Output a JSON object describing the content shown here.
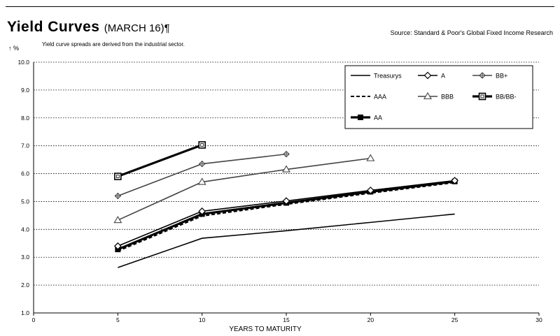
{
  "header": {
    "title": "Yield Curves",
    "title_date": "(MARCH 16)¶",
    "source": "Source: Standard & Poor's Global Fixed Income Research",
    "subtitle": "Yield curve spreads are derived from the industrial sector.",
    "y_unit": "%"
  },
  "chart_data": {
    "type": "line",
    "title": "Yield Curves",
    "xlabel": "YEARS TO MATURITY",
    "ylabel": "%",
    "xlim": [
      0,
      30
    ],
    "ylim": [
      1.0,
      10.0
    ],
    "x_ticks": [
      0,
      5,
      10,
      15,
      20,
      25,
      30
    ],
    "y_ticks": [
      "1.0",
      "2.0",
      "3.0",
      "4.0",
      "5.0",
      "6.0",
      "7.0",
      "8.0",
      "9.0",
      "10.0"
    ],
    "grid": "horizontal dotted",
    "legend_position": "top-right",
    "series": [
      {
        "name": "Treasurys",
        "style": "solid",
        "marker": "none",
        "color": "#000000",
        "x": [
          5,
          10,
          15,
          20,
          25
        ],
        "y": [
          2.63,
          3.68,
          3.95,
          4.25,
          4.55
        ]
      },
      {
        "name": "AAA",
        "style": "dashed",
        "marker": "none",
        "color": "#000000",
        "x": [
          5,
          10,
          15,
          20,
          25
        ],
        "y": [
          3.22,
          4.48,
          4.9,
          5.3,
          5.68
        ]
      },
      {
        "name": "AA",
        "style": "bold",
        "marker": "filled-square",
        "color": "#000000",
        "x": [
          5,
          10,
          15,
          20,
          25
        ],
        "y": [
          3.28,
          4.55,
          4.95,
          5.35,
          5.72
        ]
      },
      {
        "name": "A",
        "style": "solid",
        "marker": "diamond",
        "color": "#000000",
        "x": [
          5,
          10,
          15,
          20,
          25
        ],
        "y": [
          3.4,
          4.65,
          5.02,
          5.4,
          5.75
        ]
      },
      {
        "name": "BBB",
        "style": "solid",
        "marker": "triangle",
        "color": "#444444",
        "x": [
          5,
          10,
          15,
          20
        ],
        "y": [
          4.33,
          5.7,
          6.15,
          6.55
        ]
      },
      {
        "name": "BB+",
        "style": "solid",
        "marker": "plus-diamond",
        "color": "#444444",
        "x": [
          5,
          10,
          15
        ],
        "y": [
          5.2,
          6.35,
          6.7
        ]
      },
      {
        "name": "BB/BB-",
        "style": "bold",
        "marker": "open-square",
        "color": "#000000",
        "x": [
          5,
          10
        ],
        "y": [
          5.9,
          7.03
        ]
      }
    ]
  }
}
